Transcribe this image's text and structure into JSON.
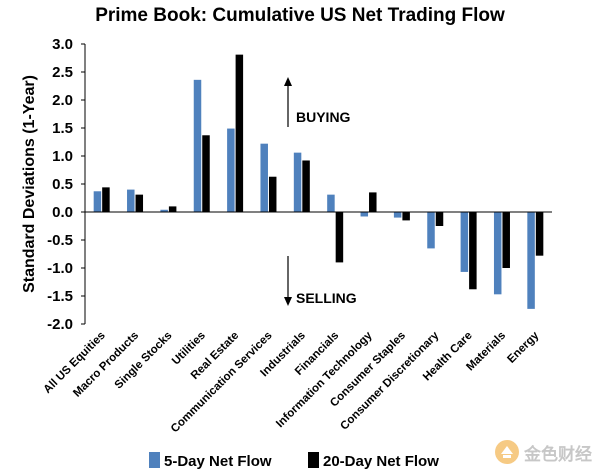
{
  "chart_data": {
    "type": "bar",
    "title": "Prime Book: Cumulative US Net Trading Flow",
    "ylabel": "Standard Deviations (1-Year)",
    "xlabel": "",
    "ylim": [
      -2.0,
      3.0
    ],
    "yticks": [
      "3.0",
      "2.5",
      "2.0",
      "1.5",
      "1.0",
      "0.5",
      "0.0",
      "-0.5",
      "-1.0",
      "-1.5",
      "-2.0"
    ],
    "ytick_values": [
      3.0,
      2.5,
      2.0,
      1.5,
      1.0,
      0.5,
      0.0,
      -0.5,
      -1.0,
      -1.5,
      -2.0
    ],
    "grid": false,
    "legend_position": "bottom",
    "categories": [
      "All US Equities",
      "Macro Products",
      "Single Stocks",
      "Utilities",
      "Real Estate",
      "Communication Services",
      "Industrials",
      "Financials",
      "Information Technology",
      "Consumer Staples",
      "Consumer Discretionary",
      "Health Care",
      "Materials",
      "Energy"
    ],
    "series": [
      {
        "name": "5-Day Net Flow",
        "color": "#4F81BD",
        "values": [
          0.37,
          0.4,
          0.04,
          2.36,
          1.49,
          1.22,
          1.06,
          0.31,
          -0.08,
          -0.1,
          -0.65,
          -1.07,
          -1.47,
          -1.73
        ]
      },
      {
        "name": "20-Day Net Flow",
        "color": "#000000",
        "values": [
          0.44,
          0.31,
          0.1,
          1.37,
          2.81,
          0.63,
          0.92,
          -0.9,
          0.35,
          -0.15,
          -0.25,
          -1.38,
          -1.0,
          -0.78
        ]
      }
    ],
    "annotations": {
      "buying": "BUYING",
      "selling": "SELLING"
    }
  },
  "watermark": {
    "text": "金色财经",
    "icon": "jinse-logo-icon",
    "color": "#f0a020"
  }
}
